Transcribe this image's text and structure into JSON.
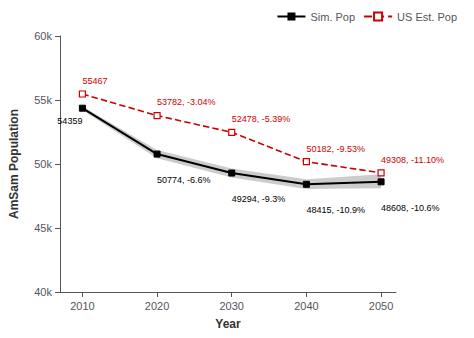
{
  "chart_data": {
    "type": "line",
    "xlabel": "Year",
    "ylabel": "AmSam Population",
    "x": [
      2010,
      2020,
      2030,
      2040,
      2050
    ],
    "series": [
      {
        "name": "Sim. Pop",
        "color": "#000000",
        "line_style": "solid",
        "marker": "square",
        "values": [
          54359,
          50774,
          49294,
          48415,
          48608
        ],
        "value_labels": [
          "54359",
          "50774, -6.6%",
          "49294, -9.3%",
          "48415, -10.9%",
          "48608, -10.6%"
        ],
        "band": {
          "lower": [
            54200,
            50450,
            48950,
            48050,
            48100
          ],
          "upper": [
            54500,
            51100,
            49650,
            48800,
            49200
          ],
          "color": "#aaaaaa"
        }
      },
      {
        "name": "US Est. Pop",
        "color": "#cc0000",
        "line_style": "dashed",
        "marker": "square_open",
        "values": [
          55467,
          53782,
          52478,
          50182,
          49308
        ],
        "value_labels": [
          "55467",
          "53782, -3.04%",
          "52478, -5.39%",
          "50182, -9.53%",
          "49308, -11.10%"
        ]
      }
    ],
    "xlim": [
      2007,
      2052
    ],
    "xticks": [
      2010,
      2020,
      2030,
      2040,
      2050
    ],
    "ylim": [
      40000,
      60000
    ],
    "yticks": [
      {
        "value": 40000,
        "label": "40k"
      },
      {
        "value": 45000,
        "label": "45k"
      },
      {
        "value": 50000,
        "label": "50k"
      },
      {
        "value": 55000,
        "label": "55k"
      },
      {
        "value": 60000,
        "label": "60k"
      }
    ],
    "data_labels": true,
    "grid": false,
    "legend": "upper right"
  }
}
